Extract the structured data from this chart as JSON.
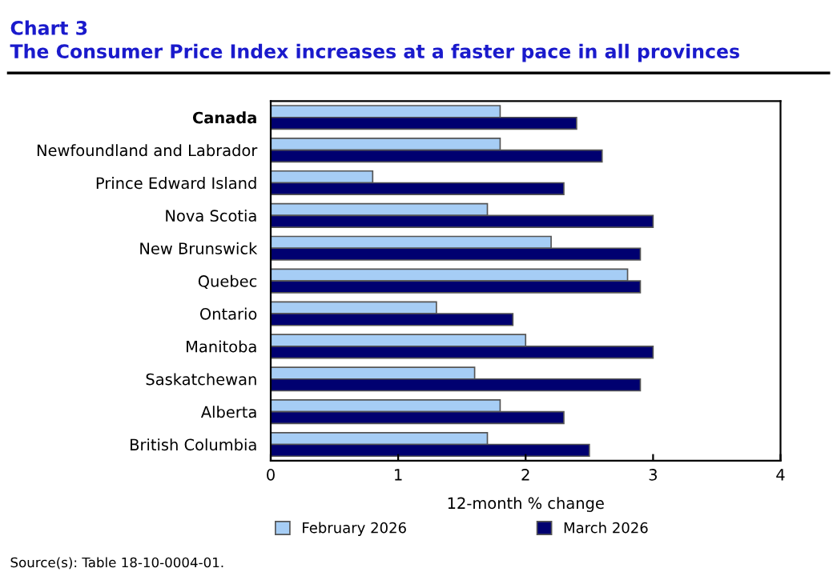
{
  "chart_data": {
    "type": "bar",
    "orientation": "horizontal",
    "title": "Chart 3",
    "subtitle": "The Consumer Price Index increases at a faster pace in all provinces",
    "categories": [
      "Canada",
      "Newfoundland and Labrador",
      "Prince Edward Island",
      "Nova Scotia",
      "New Brunswick",
      "Quebec",
      "Ontario",
      "Manitoba",
      "Saskatchewan",
      "Alberta",
      "British Columbia"
    ],
    "series": [
      {
        "name": "February 2026",
        "color": "#a6cdf5",
        "values": [
          1.8,
          1.8,
          0.8,
          1.7,
          2.2,
          2.8,
          1.3,
          2.0,
          1.6,
          1.8,
          1.7
        ]
      },
      {
        "name": "March 2026",
        "color": "#000070",
        "values": [
          2.4,
          2.6,
          2.3,
          3.0,
          2.9,
          2.9,
          1.9,
          3.0,
          2.9,
          2.3,
          2.5
        ]
      }
    ],
    "xlabel": "12-month % change",
    "xlim": [
      0,
      4
    ],
    "xticks": [
      0,
      1,
      2,
      3,
      4
    ],
    "grid": false,
    "legend": "bottom",
    "annotations": [
      "Source(s): Table 18-10-0004-01."
    ]
  }
}
